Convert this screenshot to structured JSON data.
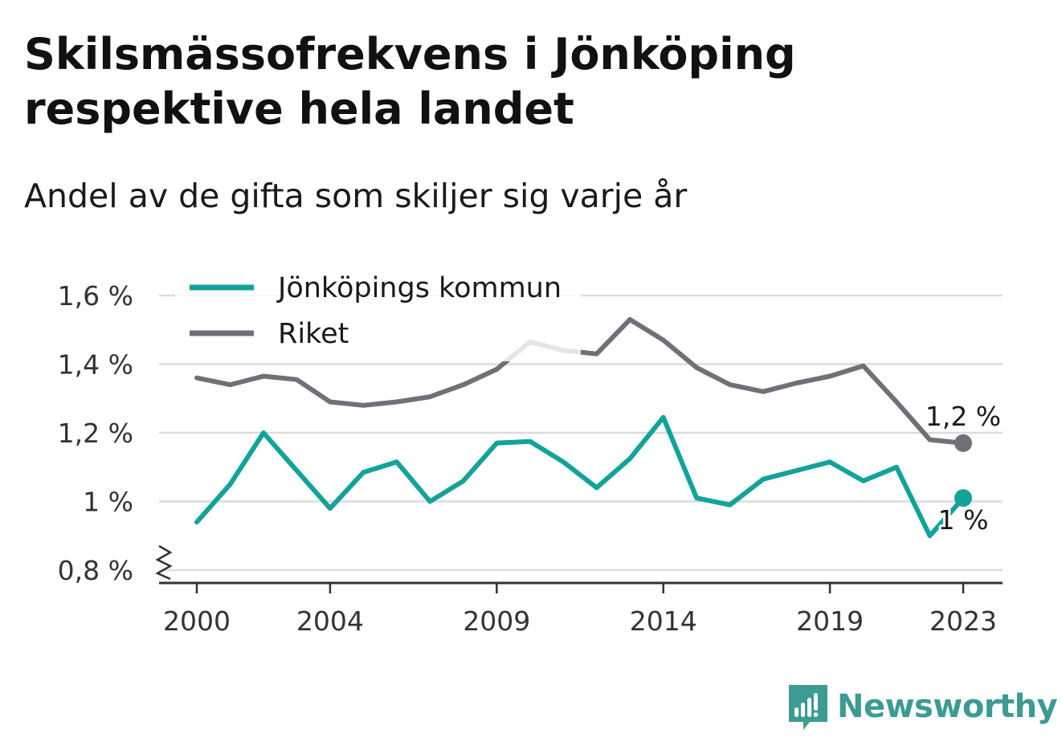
{
  "title": "Skilsmässofrekvens i Jönköping respektive hela landet",
  "subtitle": "Andel av de gifta som skiljer sig varje år",
  "brand": {
    "name": "Newsworthy",
    "icon": "newsworthy-logo-icon",
    "color": "#3d9b94"
  },
  "chart_data": {
    "type": "line",
    "title": "Skilsmässofrekvens i Jönköping respektive hela landet",
    "subtitle": "Andel av de gifta som skiljer sig varje år",
    "xlabel": "",
    "ylabel": "",
    "x": [
      2000,
      2001,
      2002,
      2003,
      2004,
      2005,
      2006,
      2007,
      2008,
      2009,
      2010,
      2011,
      2012,
      2013,
      2014,
      2015,
      2016,
      2017,
      2018,
      2019,
      2020,
      2021,
      2022,
      2023
    ],
    "x_ticks": [
      2000,
      2004,
      2009,
      2014,
      2019,
      2023
    ],
    "x_tick_labels": [
      "2000",
      "2004",
      "2009",
      "2014",
      "2019",
      "2023"
    ],
    "ylim": [
      0.8,
      1.6
    ],
    "y_ticks": [
      0.8,
      1.0,
      1.2,
      1.4,
      1.6
    ],
    "y_tick_labels": [
      "0,8 %",
      "1 %",
      "1,2 %",
      "1,4 %",
      "1,6 %"
    ],
    "y_axis_break": true,
    "grid": true,
    "legend_position": "top-left",
    "series": [
      {
        "name": "Jönköpings kommun",
        "color": "#12a39a",
        "values": [
          0.94,
          1.05,
          1.2,
          1.09,
          0.98,
          1.085,
          1.115,
          1.0,
          1.06,
          1.17,
          1.175,
          1.115,
          1.04,
          1.125,
          1.245,
          1.01,
          0.99,
          1.065,
          1.09,
          1.115,
          1.06,
          1.1,
          0.9,
          1.01
        ],
        "end_label": "1 %"
      },
      {
        "name": "Riket",
        "color": "#717077",
        "values": [
          1.36,
          1.34,
          1.365,
          1.355,
          1.29,
          1.28,
          1.29,
          1.305,
          1.34,
          1.385,
          1.465,
          1.44,
          1.43,
          1.53,
          1.47,
          1.39,
          1.34,
          1.32,
          1.345,
          1.365,
          1.395,
          1.29,
          1.18,
          1.17
        ],
        "end_label": "1,2 %"
      }
    ]
  }
}
